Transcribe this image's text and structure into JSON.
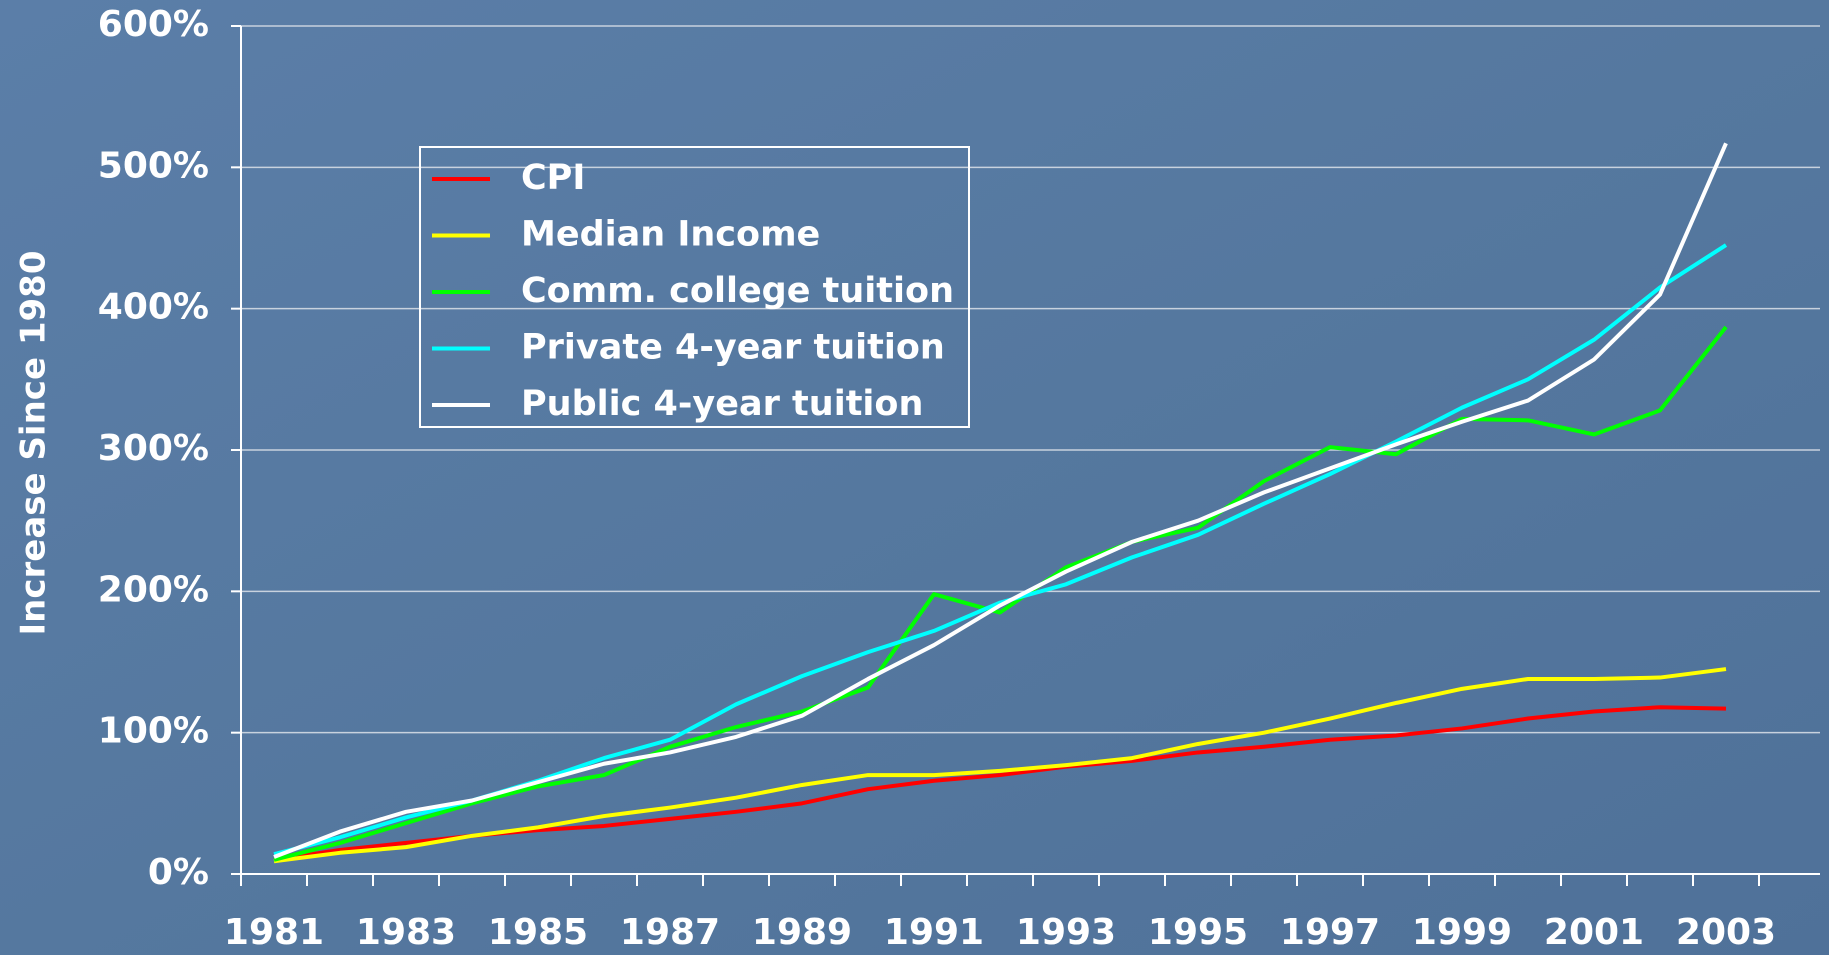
{
  "chart_data": {
    "type": "line",
    "y_label": "Increase Since 1980",
    "categories": [
      "1981",
      null,
      "1983",
      null,
      "1985",
      null,
      "1987",
      null,
      "1989",
      null,
      "1991",
      null,
      "1993",
      null,
      "1995",
      null,
      "1997",
      null,
      "1999",
      null,
      "2001",
      null,
      "2003"
    ],
    "ylim": [
      0,
      600
    ],
    "yticks": [
      {
        "value": 0,
        "label": "0%"
      },
      {
        "value": 100,
        "label": "100%"
      },
      {
        "value": 200,
        "label": "200%"
      },
      {
        "value": 300,
        "label": "300%"
      },
      {
        "value": 400,
        "label": "400%"
      },
      {
        "value": 500,
        "label": "500%"
      },
      {
        "value": 600,
        "label": "600%"
      }
    ],
    "grid": true,
    "legend": "upper left",
    "series": [
      {
        "name": "CPI",
        "color": "#ff0000",
        "values": [
          10,
          17,
          22,
          27,
          31,
          34,
          39,
          44,
          50,
          60,
          66,
          70,
          76,
          80,
          86,
          90,
          95,
          98,
          103,
          110,
          115,
          118,
          117
        ]
      },
      {
        "name": "Median Income",
        "color": "#ffff00",
        "values": [
          9,
          15,
          19,
          27,
          33,
          41,
          47,
          54,
          63,
          70,
          70,
          73,
          77,
          82,
          92,
          100,
          110,
          121,
          131,
          138,
          138,
          139,
          145
        ]
      },
      {
        "name": "Comm. college tuition",
        "color": "#00ff00",
        "values": [
          10,
          22,
          36,
          50,
          62,
          70,
          90,
          104,
          115,
          132,
          198,
          185,
          217,
          235,
          245,
          278,
          302,
          297,
          322,
          321,
          311,
          328,
          387
        ]
      },
      {
        "name": "Private 4-year tuition",
        "color": "#00ffff",
        "values": [
          14,
          26,
          40,
          52,
          66,
          82,
          95,
          120,
          140,
          157,
          172,
          192,
          205,
          224,
          240,
          262,
          283,
          306,
          330,
          350,
          378,
          415,
          445
        ]
      },
      {
        "name": "Public 4-year tuition",
        "color": "#ffffff",
        "values": [
          12,
          30,
          44,
          52,
          65,
          78,
          86,
          97,
          112,
          138,
          162,
          190,
          214,
          235,
          250,
          270,
          287,
          304,
          320,
          335,
          364,
          410,
          517
        ]
      }
    ]
  }
}
